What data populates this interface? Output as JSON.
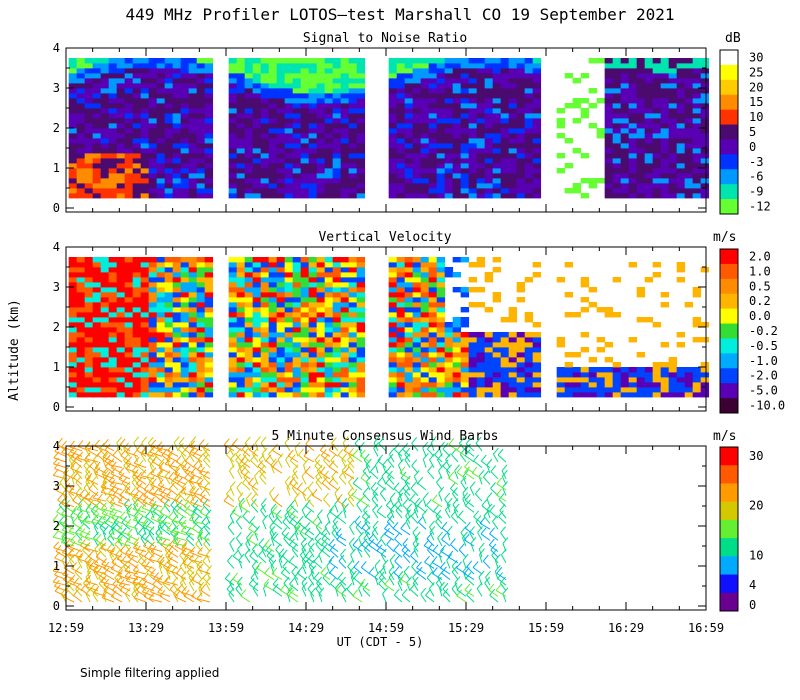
{
  "title": "449 MHz Profiler LOTOS—test Marshall CO 19 September 2021",
  "ylabel": "Altitude (km)",
  "xlabel": "UT  (CDT - 5)",
  "footnote": "Simple filtering applied",
  "chart_data": [
    {
      "type": "heatmap",
      "title": "Signal to Noise Ratio",
      "unit": "dB",
      "ylim": [
        0,
        4
      ],
      "yticks": [
        "0",
        "1",
        "2",
        "3",
        "4"
      ],
      "xticks": [
        "12:59",
        "13:29",
        "13:59",
        "14:29",
        "14:59",
        "15:29",
        "15:59",
        "16:29",
        "16:59"
      ],
      "xlim_minutes": [
        0,
        240
      ],
      "gaps_minutes": [
        [
          54,
          61
        ],
        [
          112,
          119
        ],
        [
          178,
          183
        ]
      ],
      "colorbar": {
        "labels": [
          "30",
          "25",
          "20",
          "15",
          "10",
          "5",
          "0",
          "-3",
          "-6",
          "-9",
          "-12"
        ],
        "colors": [
          "#ffffff",
          "#ffff00",
          "#ffcc00",
          "#ff8c00",
          "#ff3300",
          "#4b0a6e",
          "#5a00b4",
          "#0033ff",
          "#0099ff",
          "#00e5b0",
          "#66ff33"
        ]
      }
    },
    {
      "type": "heatmap",
      "title": "Vertical Velocity",
      "unit": "m/s",
      "ylim": [
        0,
        4
      ],
      "yticks": [
        "0",
        "1",
        "2",
        "3",
        "4"
      ],
      "colorbar": {
        "labels": [
          "2.0",
          "1.0",
          "0.5",
          "0.2",
          "0.0",
          "-0.2",
          "-0.5",
          "-1.0",
          "-2.0",
          "-5.0",
          "-10.0"
        ],
        "colors": [
          "#ff0000",
          "#ff5a00",
          "#ff8c00",
          "#ffb400",
          "#ffff00",
          "#33dd33",
          "#00eedd",
          "#00aaff",
          "#0044ff",
          "#5a00b4",
          "#3c0032"
        ]
      }
    },
    {
      "type": "wind_barbs",
      "title": "5 Minute Consensus Wind Barbs",
      "unit": "m/s",
      "ylim": [
        0,
        4
      ],
      "yticks": [
        "0",
        "1",
        "2",
        "3",
        "4"
      ],
      "colorbar": {
        "labels": [
          "30",
          "20",
          "10",
          "4",
          "0"
        ],
        "label_values": [
          30,
          20,
          10,
          4,
          0
        ],
        "colors": [
          "#ff0000",
          "#ff5a00",
          "#ff9a00",
          "#d4c800",
          "#66ee33",
          "#00dd88",
          "#00aaff",
          "#1010ff",
          "#6a0090"
        ]
      }
    }
  ]
}
